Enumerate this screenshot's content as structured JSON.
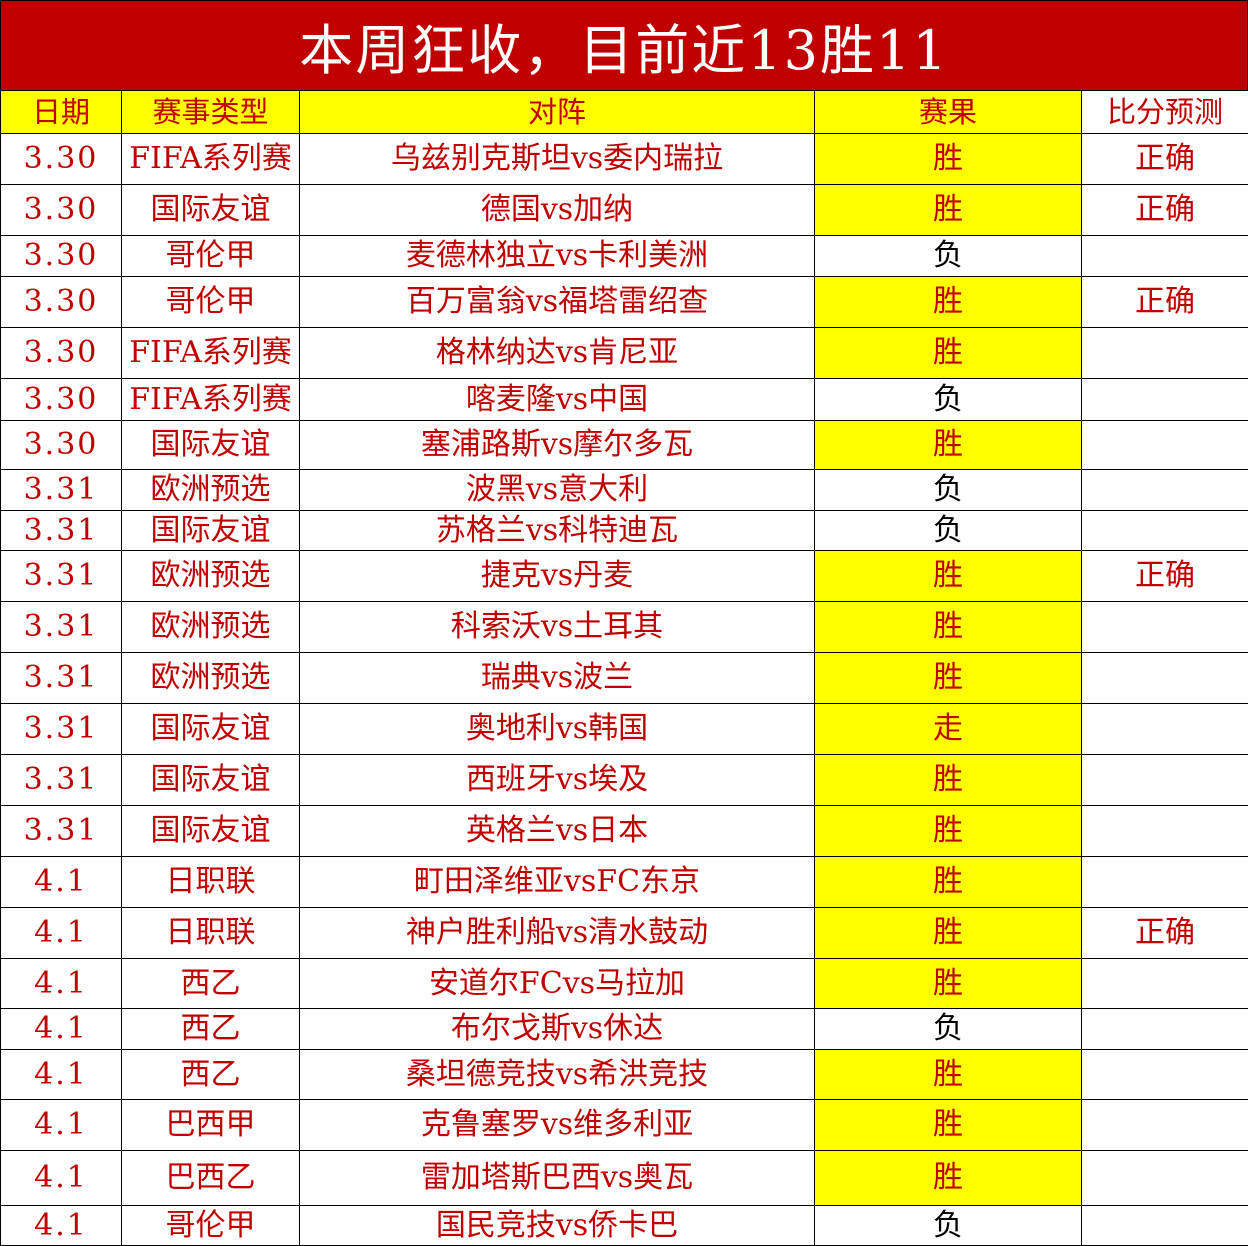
{
  "title": "本周狂收，目前近13胜11",
  "colors": {
    "title_bg": "#c00000",
    "text_red": "#c00000",
    "highlight": "#ffff00"
  },
  "columns": [
    "日期",
    "赛事类型",
    "对阵",
    "赛果",
    "比分预测"
  ],
  "rows": [
    {
      "date": "3.30",
      "league": "FIFA系列赛",
      "match": "乌兹别克斯坦vs委内瑞拉",
      "result": "胜",
      "score": "正确"
    },
    {
      "date": "3.30",
      "league": "国际友谊",
      "match": "德国vs加纳",
      "result": "胜",
      "score": "正确"
    },
    {
      "date": "3.30",
      "league": "哥伦甲",
      "match": "麦德林独立vs卡利美洲",
      "result": "负",
      "score": ""
    },
    {
      "date": "3.30",
      "league": "哥伦甲",
      "match": "百万富翁vs福塔雷绍查",
      "result": "胜",
      "score": "正确"
    },
    {
      "date": "3.30",
      "league": "FIFA系列赛",
      "match": "格林纳达vs肯尼亚",
      "result": "胜",
      "score": ""
    },
    {
      "date": "3.30",
      "league": "FIFA系列赛",
      "match": "喀麦隆vs中国",
      "result": "负",
      "score": ""
    },
    {
      "date": "3.30",
      "league": "国际友谊",
      "match": "塞浦路斯vs摩尔多瓦",
      "result": "胜",
      "score": ""
    },
    {
      "date": "3.31",
      "league": "欧洲预选",
      "match": "波黑vs意大利",
      "result": "负",
      "score": ""
    },
    {
      "date": "3.31",
      "league": "国际友谊",
      "match": "苏格兰vs科特迪瓦",
      "result": "负",
      "score": ""
    },
    {
      "date": "3.31",
      "league": "欧洲预选",
      "match": "捷克vs丹麦",
      "result": "胜",
      "score": "正确"
    },
    {
      "date": "3.31",
      "league": "欧洲预选",
      "match": "科索沃vs土耳其",
      "result": "胜",
      "score": ""
    },
    {
      "date": "3.31",
      "league": "欧洲预选",
      "match": "瑞典vs波兰",
      "result": "胜",
      "score": ""
    },
    {
      "date": "3.31",
      "league": "国际友谊",
      "match": "奥地利vs韩国",
      "result": "走",
      "score": ""
    },
    {
      "date": "3.31",
      "league": "国际友谊",
      "match": "西班牙vs埃及",
      "result": "胜",
      "score": ""
    },
    {
      "date": "3.31",
      "league": "国际友谊",
      "match": "英格兰vs日本",
      "result": "胜",
      "score": ""
    },
    {
      "date": "4.1",
      "league": "日职联",
      "match": "町田泽维亚vsFC东京",
      "result": "胜",
      "score": ""
    },
    {
      "date": "4.1",
      "league": "日职联",
      "match": "神户胜利船vs清水鼓动",
      "result": "胜",
      "score": "正确"
    },
    {
      "date": "4.1",
      "league": "西乙",
      "match": "安道尔FCvs马拉加",
      "result": "胜",
      "score": ""
    },
    {
      "date": "4.1",
      "league": "西乙",
      "match": "布尔戈斯vs休达",
      "result": "负",
      "score": ""
    },
    {
      "date": "4.1",
      "league": "西乙",
      "match": "桑坦德竞技vs希洪竞技",
      "result": "胜",
      "score": ""
    },
    {
      "date": "4.1",
      "league": "巴西甲",
      "match": "克鲁塞罗vs维多利亚",
      "result": "胜",
      "score": ""
    },
    {
      "date": "4.1",
      "league": "巴西乙",
      "match": "雷加塔斯巴西vs奥瓦",
      "result": "胜",
      "score": ""
    },
    {
      "date": "4.1",
      "league": "哥伦甲",
      "match": "国民竞技vs侨卡巴",
      "result": "负",
      "score": ""
    }
  ]
}
